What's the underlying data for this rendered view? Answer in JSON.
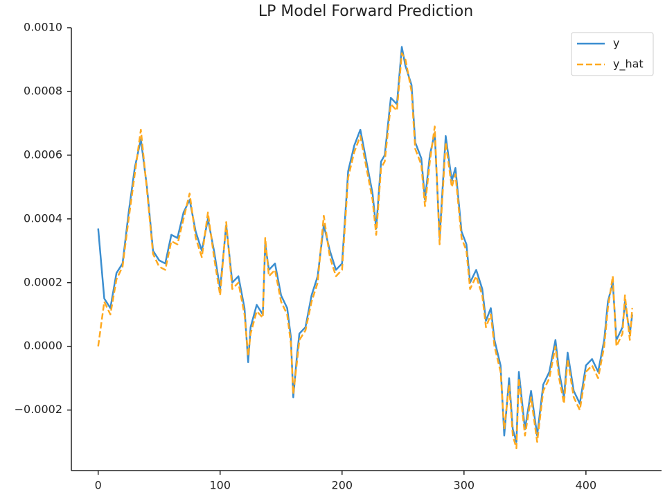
{
  "chart_data": {
    "type": "line",
    "title": "LP Model Forward Prediction",
    "x": [
      0,
      5,
      10,
      15,
      20,
      25,
      30,
      35,
      40,
      45,
      50,
      55,
      60,
      65,
      70,
      75,
      80,
      85,
      90,
      95,
      100,
      105,
      110,
      115,
      120,
      123,
      125,
      130,
      135,
      137,
      140,
      145,
      150,
      155,
      158,
      160,
      163,
      165,
      170,
      175,
      180,
      185,
      190,
      195,
      200,
      205,
      210,
      215,
      220,
      225,
      228,
      232,
      235,
      240,
      245,
      249,
      252,
      257,
      260,
      265,
      268,
      272,
      276,
      280,
      285,
      290,
      293,
      298,
      302,
      305,
      310,
      315,
      318,
      322,
      325,
      330,
      333,
      337,
      340,
      343,
      345,
      350,
      355,
      360,
      365,
      370,
      375,
      378,
      382,
      385,
      390,
      395,
      400,
      405,
      410,
      415,
      418,
      422,
      425,
      430,
      432,
      436,
      438
    ],
    "series": [
      {
        "name": "y",
        "color": "#3b8ed0",
        "dashed": false,
        "values": [
          0.00037,
          0.00015,
          0.00012,
          0.00023,
          0.00026,
          0.00042,
          0.00056,
          0.00065,
          0.0005,
          0.0003,
          0.00027,
          0.00026,
          0.00035,
          0.00034,
          0.00042,
          0.00046,
          0.00036,
          0.0003,
          0.0004,
          0.0003,
          0.00018,
          0.00038,
          0.0002,
          0.00022,
          0.00012,
          -5e-05,
          6e-05,
          0.00013,
          0.0001,
          0.00032,
          0.00024,
          0.00026,
          0.00016,
          0.00012,
          3e-05,
          -0.00016,
          -3e-05,
          4e-05,
          6e-05,
          0.00016,
          0.00022,
          0.00038,
          0.0003,
          0.00024,
          0.00026,
          0.00055,
          0.00063,
          0.00068,
          0.00058,
          0.00048,
          0.00037,
          0.00058,
          0.0006,
          0.00078,
          0.00076,
          0.00094,
          0.00088,
          0.00082,
          0.00064,
          0.00059,
          0.00046,
          0.0006,
          0.00067,
          0.00034,
          0.00066,
          0.00052,
          0.00056,
          0.00036,
          0.00032,
          0.0002,
          0.00024,
          0.00018,
          8e-05,
          0.00012,
          2e-05,
          -6e-05,
          -0.00028,
          -0.0001,
          -0.00026,
          -0.0003,
          -8e-05,
          -0.00026,
          -0.00014,
          -0.00028,
          -0.00012,
          -8e-05,
          2e-05,
          -8e-05,
          -0.00016,
          -2e-05,
          -0.00014,
          -0.00018,
          -6e-05,
          -4e-05,
          -8e-05,
          2e-05,
          0.00014,
          0.0002,
          2e-05,
          6e-05,
          0.00014,
          4e-05,
          0.0001
        ]
      },
      {
        "name": "y_hat",
        "color": "#ffa91f",
        "dashed": true,
        "values": [
          0,
          0.00014,
          0.0001,
          0.00021,
          0.00025,
          0.0004,
          0.00054,
          0.00068,
          0.00049,
          0.00029,
          0.00025,
          0.00024,
          0.00033,
          0.00032,
          0.0004,
          0.00048,
          0.00034,
          0.00028,
          0.00042,
          0.00028,
          0.00016,
          0.00039,
          0.00018,
          0.0002,
          0.0001,
          -3e-05,
          4e-05,
          0.00011,
          9e-05,
          0.00034,
          0.00022,
          0.00024,
          0.00014,
          0.0001,
          1e-05,
          -0.00015,
          -5e-05,
          2e-05,
          5e-05,
          0.00014,
          0.0002,
          0.00041,
          0.00028,
          0.00022,
          0.00024,
          0.00053,
          0.00061,
          0.00066,
          0.00056,
          0.00046,
          0.00035,
          0.00056,
          0.00058,
          0.00076,
          0.00074,
          0.00092,
          0.0009,
          0.0008,
          0.00062,
          0.00057,
          0.00044,
          0.00058,
          0.00069,
          0.00032,
          0.00064,
          0.0005,
          0.00054,
          0.00034,
          0.0003,
          0.00018,
          0.00022,
          0.00016,
          6e-05,
          0.0001,
          0,
          -8e-05,
          -0.00026,
          -0.00012,
          -0.00028,
          -0.00032,
          -0.0001,
          -0.00028,
          -0.00016,
          -0.0003,
          -0.00014,
          -0.0001,
          0,
          -0.0001,
          -0.00018,
          -4e-05,
          -0.00016,
          -0.0002,
          -8e-05,
          -6e-05,
          -0.0001,
          0,
          0.00012,
          0.00022,
          0,
          4e-05,
          0.00016,
          2e-05,
          0.00012
        ]
      }
    ],
    "xlim": [
      -22,
      462
    ],
    "ylim": [
      -0.00039,
      0.001
    ],
    "xticks": [
      0,
      100,
      200,
      300,
      400
    ],
    "yticks": [
      {
        "value": -0.0002,
        "label": "−0.0002"
      },
      {
        "value": 0,
        "label": "0.0000"
      },
      0.0002,
      0.0004,
      0.0006,
      0.0008,
      {
        "value": 0.001,
        "label": "0.0010"
      }
    ],
    "grid": false,
    "legend": "upper right"
  }
}
